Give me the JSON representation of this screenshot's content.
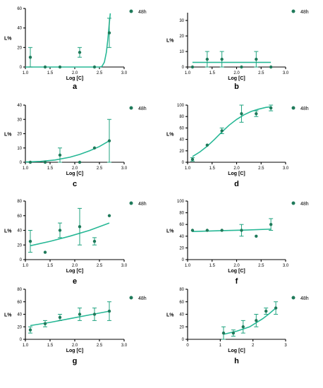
{
  "colors": {
    "series": "#1fa37f",
    "marker": "#1f7a5a",
    "fit": "#27b896"
  },
  "chart_data": [
    {
      "panel": "a",
      "type": "scatter",
      "xlabel": "Log [C]",
      "ylabel": "L%",
      "xlim": [
        1.0,
        3.0
      ],
      "ylim": [
        0,
        60
      ],
      "xticks": [
        "1.0",
        "1.5",
        "2.0",
        "2.5",
        "3.0"
      ],
      "yticks": [
        "0",
        "20",
        "40",
        "60"
      ],
      "legend": "48h",
      "points": [
        {
          "x": 1.1,
          "y": 10,
          "err": 10
        },
        {
          "x": 1.4,
          "y": 0,
          "err": 0
        },
        {
          "x": 1.7,
          "y": 0,
          "err": 0
        },
        {
          "x": 2.1,
          "y": 15,
          "err": 5
        },
        {
          "x": 2.4,
          "y": 0,
          "err": 0
        },
        {
          "x": 2.7,
          "y": 35,
          "err": 15
        }
      ],
      "fit": [
        [
          1.0,
          0
        ],
        [
          2.5,
          0
        ],
        [
          2.55,
          0.5
        ],
        [
          2.6,
          5
        ],
        [
          2.64,
          15
        ],
        [
          2.67,
          28
        ],
        [
          2.7,
          45
        ],
        [
          2.72,
          55
        ]
      ]
    },
    {
      "panel": "b",
      "type": "scatter",
      "xlabel": "Log [C]",
      "ylabel": "L%",
      "xlim": [
        1.0,
        3.0
      ],
      "ylim": [
        0,
        35
      ],
      "xticks": [
        "1.0",
        "1.5",
        "2.0",
        "2.5",
        "3.0"
      ],
      "yticks": [
        "0",
        "10",
        "20",
        "30"
      ],
      "legend": "48h",
      "points": [
        {
          "x": 1.1,
          "y": 0,
          "err": 0
        },
        {
          "x": 1.4,
          "y": 5,
          "err": 5
        },
        {
          "x": 1.7,
          "y": 5,
          "err": 5
        },
        {
          "x": 2.1,
          "y": 0,
          "err": 0
        },
        {
          "x": 2.4,
          "y": 5,
          "err": 5
        },
        {
          "x": 2.7,
          "y": 0,
          "err": 0
        }
      ],
      "fit": [
        [
          1.1,
          3
        ],
        [
          2.7,
          3
        ]
      ]
    },
    {
      "panel": "c",
      "type": "scatter",
      "xlabel": "Log [C]",
      "ylabel": "L%",
      "xlim": [
        1.0,
        3.0
      ],
      "ylim": [
        0,
        40
      ],
      "xticks": [
        "1.0",
        "1.5",
        "2.0",
        "2.5",
        "3.0"
      ],
      "yticks": [
        "0",
        "10",
        "20",
        "30",
        "40"
      ],
      "legend": "48h",
      "points": [
        {
          "x": 1.1,
          "y": 0,
          "err": 0
        },
        {
          "x": 1.4,
          "y": 0,
          "err": 0
        },
        {
          "x": 1.7,
          "y": 5,
          "err": 5
        },
        {
          "x": 2.1,
          "y": 0,
          "err": 0
        },
        {
          "x": 2.4,
          "y": 10,
          "err": 0
        },
        {
          "x": 2.7,
          "y": 15,
          "err": 15
        }
      ],
      "fit": [
        [
          1.0,
          0.2
        ],
        [
          1.3,
          0.6
        ],
        [
          1.6,
          1.6
        ],
        [
          1.9,
          3.5
        ],
        [
          2.1,
          5.5
        ],
        [
          2.3,
          8
        ],
        [
          2.5,
          11
        ],
        [
          2.7,
          15
        ]
      ]
    },
    {
      "panel": "d",
      "type": "scatter",
      "xlabel": "Log [C]",
      "ylabel": "L%",
      "xlim": [
        1.0,
        3.0
      ],
      "ylim": [
        0,
        100
      ],
      "xticks": [
        "1.0",
        "1.5",
        "2.0",
        "2.5",
        "3.0"
      ],
      "yticks": [
        "0",
        "20",
        "40",
        "60",
        "80",
        "100"
      ],
      "legend": "48h",
      "points": [
        {
          "x": 1.1,
          "y": 5,
          "err": 3
        },
        {
          "x": 1.4,
          "y": 30,
          "err": 0
        },
        {
          "x": 1.7,
          "y": 55,
          "err": 5
        },
        {
          "x": 2.1,
          "y": 85,
          "err": 15
        },
        {
          "x": 2.4,
          "y": 85,
          "err": 5
        },
        {
          "x": 2.7,
          "y": 95,
          "err": 5
        }
      ],
      "fit": [
        [
          1.1,
          10
        ],
        [
          1.25,
          18
        ],
        [
          1.4,
          28
        ],
        [
          1.55,
          40
        ],
        [
          1.7,
          53
        ],
        [
          1.85,
          65
        ],
        [
          2.0,
          75
        ],
        [
          2.15,
          83
        ],
        [
          2.3,
          89
        ],
        [
          2.45,
          93
        ],
        [
          2.6,
          96
        ],
        [
          2.7,
          97
        ]
      ]
    },
    {
      "panel": "e",
      "type": "scatter",
      "xlabel": "Log [C]",
      "ylabel": "L%",
      "xlim": [
        1.0,
        3.0
      ],
      "ylim": [
        0,
        80
      ],
      "xticks": [
        "1.0",
        "1.5",
        "2.0",
        "2.5",
        "3.0"
      ],
      "yticks": [
        "0",
        "20",
        "40",
        "60",
        "80"
      ],
      "legend": "48h",
      "points": [
        {
          "x": 1.1,
          "y": 25,
          "err": 15
        },
        {
          "x": 1.4,
          "y": 10,
          "err": 0
        },
        {
          "x": 1.7,
          "y": 40,
          "err": 10
        },
        {
          "x": 2.1,
          "y": 45,
          "err": 25
        },
        {
          "x": 2.4,
          "y": 25,
          "err": 5
        },
        {
          "x": 2.7,
          "y": 60,
          "err": 0
        }
      ],
      "fit": [
        [
          1.1,
          19
        ],
        [
          1.5,
          25
        ],
        [
          1.9,
          32
        ],
        [
          2.3,
          40
        ],
        [
          2.7,
          50
        ]
      ]
    },
    {
      "panel": "f",
      "type": "scatter",
      "xlabel": "Log [C]",
      "ylabel": "L%",
      "xlim": [
        1.0,
        3.0
      ],
      "ylim": [
        0,
        100
      ],
      "xticks": [
        "1.0",
        "1.5",
        "2.0",
        "2.5",
        "3.0"
      ],
      "yticks": [
        "0",
        "20",
        "40",
        "60",
        "80",
        "100"
      ],
      "legend": "48h",
      "points": [
        {
          "x": 1.1,
          "y": 50,
          "err": 0
        },
        {
          "x": 1.4,
          "y": 50,
          "err": 0
        },
        {
          "x": 1.7,
          "y": 50,
          "err": 0
        },
        {
          "x": 2.1,
          "y": 50,
          "err": 10
        },
        {
          "x": 2.4,
          "y": 40,
          "err": 0
        },
        {
          "x": 2.7,
          "y": 60,
          "err": 10
        }
      ],
      "fit": [
        [
          1.1,
          48
        ],
        [
          1.7,
          49.5
        ],
        [
          2.2,
          50.5
        ],
        [
          2.7,
          52
        ]
      ]
    },
    {
      "panel": "g",
      "type": "scatter",
      "xlabel": "Log [C]",
      "ylabel": "L%",
      "xlim": [
        1.0,
        3.0
      ],
      "ylim": [
        0,
        80
      ],
      "xticks": [
        "1.0",
        "1.5",
        "2.0",
        "2.5",
        "3.0"
      ],
      "yticks": [
        "0",
        "20",
        "40",
        "60",
        "80"
      ],
      "legend": "48h",
      "points": [
        {
          "x": 1.1,
          "y": 15,
          "err": 5
        },
        {
          "x": 1.4,
          "y": 25,
          "err": 5
        },
        {
          "x": 1.7,
          "y": 35,
          "err": 5
        },
        {
          "x": 2.1,
          "y": 40,
          "err": 10
        },
        {
          "x": 2.4,
          "y": 40,
          "err": 10
        },
        {
          "x": 2.7,
          "y": 45,
          "err": 15
        }
      ],
      "fit": [
        [
          1.1,
          22
        ],
        [
          1.5,
          27
        ],
        [
          1.9,
          33
        ],
        [
          2.3,
          39
        ],
        [
          2.7,
          45
        ]
      ]
    },
    {
      "panel": "h",
      "type": "scatter",
      "xlabel": "Log [C]",
      "ylabel": "L%",
      "xlim": [
        0,
        3
      ],
      "ylim": [
        0,
        80
      ],
      "xticks": [
        "0",
        "1",
        "2",
        "3"
      ],
      "yticks": [
        "0",
        "20",
        "40",
        "60",
        "80"
      ],
      "legend": "48h",
      "points": [
        {
          "x": 1.1,
          "y": 10,
          "err": 10
        },
        {
          "x": 1.4,
          "y": 10,
          "err": 5
        },
        {
          "x": 1.7,
          "y": 20,
          "err": 10
        },
        {
          "x": 2.1,
          "y": 30,
          "err": 10
        },
        {
          "x": 2.4,
          "y": 45,
          "err": 5
        },
        {
          "x": 2.7,
          "y": 50,
          "err": 10
        }
      ],
      "fit": [
        [
          1.1,
          8
        ],
        [
          1.5,
          13
        ],
        [
          1.9,
          20
        ],
        [
          2.3,
          33
        ],
        [
          2.5,
          41
        ],
        [
          2.7,
          50
        ]
      ]
    }
  ]
}
